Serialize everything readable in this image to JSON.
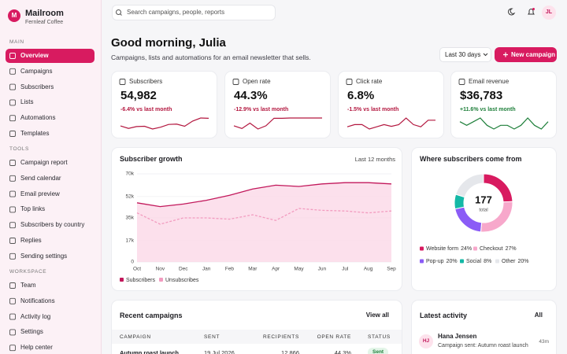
{
  "sidebar": {
    "logo": "M",
    "brand": "Mailroom",
    "org": "Fernleaf Coffee",
    "sections": [
      {
        "title": "MAIN",
        "items": [
          "Overview",
          "Campaigns",
          "Subscribers",
          "Lists",
          "Automations",
          "Templates"
        ]
      },
      {
        "title": "TOOLS",
        "items": [
          "Campaign report",
          "Send calendar",
          "Email preview",
          "Top links",
          "Subscribers by country",
          "Replies",
          "Sending settings"
        ]
      },
      {
        "title": "WORKSPACE",
        "items": [
          "Team",
          "Notifications",
          "Activity log",
          "Settings",
          "Help center"
        ]
      }
    ]
  },
  "topbar": {
    "search_placeholder": "Search campaigns, people, reports",
    "avatar": "JL"
  },
  "header": {
    "greeting": "Good morning, Julia",
    "subtitle": "Campaigns, lists and automations for an email newsletter that sells.",
    "range": "Last 30 days",
    "button": "New campaign"
  },
  "kpis": [
    {
      "label": "Subscribers",
      "value": "54,982",
      "change": "-6.4% vs last month",
      "color": "#b3173f",
      "spark": [
        4,
        3.2,
        3.8,
        3.9,
        3,
        3.6,
        4.5,
        4.6,
        3.9,
        5.6,
        6.6,
        6.5
      ]
    },
    {
      "label": "Open rate",
      "value": "44.3%",
      "change": "-12.9% vs last month",
      "color": "#b3173f",
      "spark": [
        4,
        3,
        5,
        2.8,
        4,
        6.8,
        6.8,
        6.9,
        6.9,
        6.9,
        6.9,
        6.9
      ]
    },
    {
      "label": "Click rate",
      "value": "6.8%",
      "change": "-1.5% vs last month",
      "color": "#b3173f",
      "spark": [
        3,
        4,
        4,
        2,
        3,
        4,
        3.2,
        4,
        7,
        4,
        3,
        6,
        6
      ]
    },
    {
      "label": "Email revenue",
      "value": "$36,783",
      "change": "+11.6% vs last month",
      "color": "#1e7f3a",
      "spark": [
        7,
        6,
        7,
        8,
        6,
        5,
        6,
        6,
        5,
        6,
        8,
        6,
        5,
        7
      ]
    }
  ],
  "chart_data": [
    {
      "type": "line",
      "title": "Subscriber growth",
      "subtitle": "Last 12 months",
      "categories": [
        "Oct",
        "Nov",
        "Dec",
        "Jan",
        "Feb",
        "Mar",
        "Apr",
        "May",
        "Jun",
        "Jul",
        "Aug",
        "Sep"
      ],
      "series": [
        {
          "name": "Subscribers",
          "color": "#c2185b",
          "area_color": "#fbd6e5",
          "values": [
            47000,
            44000,
            46000,
            49000,
            53000,
            58000,
            61000,
            60000,
            62000,
            63000,
            63000,
            62000
          ]
        },
        {
          "name": "Unsubscribes",
          "color": "#f29bbf",
          "dashed": true,
          "values": [
            39000,
            30000,
            35000,
            35000,
            34000,
            37500,
            33000,
            42500,
            41000,
            40500,
            39000,
            40500
          ]
        }
      ],
      "ylim": [
        0,
        70000
      ],
      "yticks": [
        0,
        {
          "value": 17000,
          "label": "17k"
        },
        {
          "value": 35000,
          "label": "35k"
        },
        {
          "value": 52000,
          "label": "52k"
        },
        {
          "value": 70000,
          "label": "70k"
        }
      ],
      "grid": true
    },
    {
      "type": "donut",
      "title": "Where subscribers come from",
      "center_value": 177,
      "center_label": "total",
      "categories": [
        "Website form",
        "Checkout",
        "Pop-up",
        "Social",
        "Other"
      ],
      "values": [
        24,
        27,
        20,
        8,
        20
      ],
      "value_labels": [
        "24%",
        "27%",
        "20%",
        "8%",
        "20%"
      ],
      "colors": [
        "#d81b60",
        "#f7a8cb",
        "#8b5cf6",
        "#14b8a6",
        "#e5e7eb"
      ]
    }
  ],
  "campaigns": {
    "title": "Recent campaigns",
    "action": "View all",
    "columns": [
      "CAMPAIGN",
      "SENT",
      "RECIPIENTS",
      "OPEN RATE",
      "STATUS"
    ],
    "rows": [
      [
        "Autumn roast launch",
        "19 Jul 2026",
        "12,866",
        "44.3%",
        "Sent"
      ]
    ]
  },
  "activity": {
    "title": "Latest activity",
    "action": "All",
    "items": [
      {
        "initials": "HJ",
        "name": "Hana Jensen",
        "text": "Campaign sent: Autumn roast launch",
        "time": "43m"
      }
    ]
  }
}
